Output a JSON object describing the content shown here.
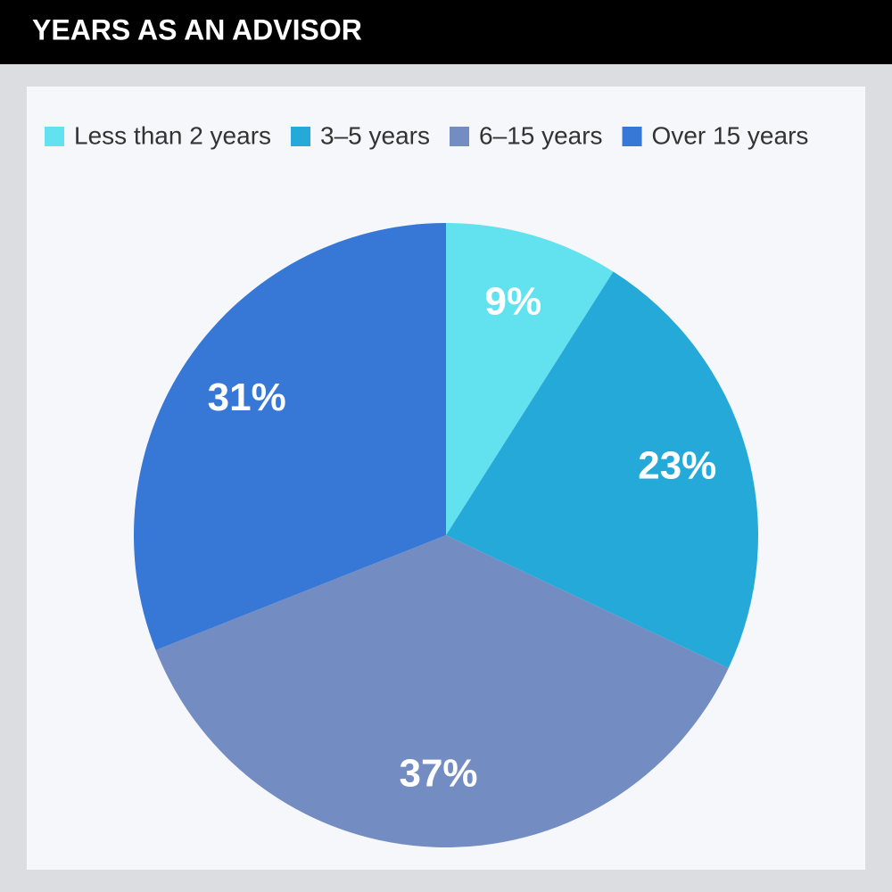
{
  "chart_data": {
    "type": "pie",
    "title": "YEARS AS AN ADVISOR",
    "categories": [
      "Less than 2 years",
      "3–5 years",
      "6–15 years",
      "Over 15 years"
    ],
    "values": [
      9,
      23,
      37,
      31
    ],
    "value_labels": [
      "9%",
      "23%",
      "37%",
      "31%"
    ],
    "colors": [
      "#62e1ee",
      "#25a9d9",
      "#738dc2",
      "#3777d6"
    ],
    "legend": "top"
  }
}
